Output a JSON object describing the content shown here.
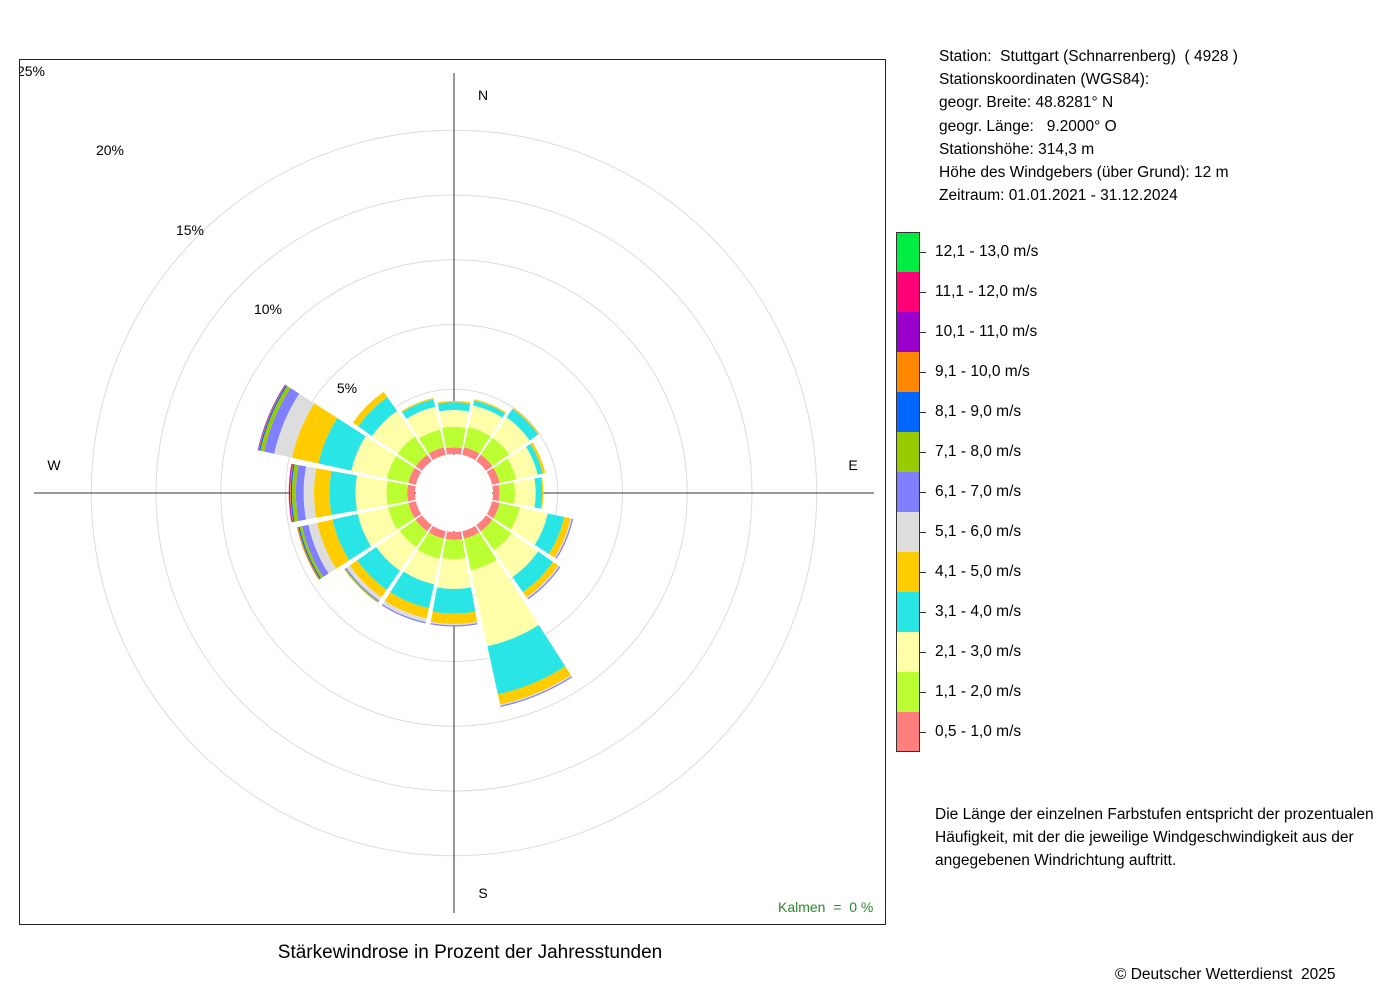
{
  "chart_data": {
    "type": "windrose",
    "title": "Stärkewindrose in Prozent der Jahresstunden",
    "directions": [
      "N",
      "NNO",
      "NO",
      "ONO",
      "O",
      "OSO",
      "SO",
      "SSO",
      "S",
      "SSW",
      "SW",
      "WSW",
      "W",
      "WNW",
      "NW",
      "NNW"
    ],
    "cardinal_labels": {
      "N": "N",
      "E": "E",
      "S": "S",
      "W": "W"
    },
    "radial_ticks": [
      {
        "value": 5,
        "label": "5%"
      },
      {
        "value": 10,
        "label": "10%"
      },
      {
        "value": 15,
        "label": "15%"
      },
      {
        "value": 20,
        "label": "20%"
      },
      {
        "value": 25,
        "label": "25%"
      }
    ],
    "speed_classes": [
      {
        "label": "0,5 - 1,0 m/s",
        "color": "#ff7f7f"
      },
      {
        "label": "1,1 - 2,0 m/s",
        "color": "#bbff33"
      },
      {
        "label": "2,1 - 3,0 m/s",
        "color": "#ffffaa"
      },
      {
        "label": "3,1 - 4,0 m/s",
        "color": "#2ae5e5"
      },
      {
        "label": "4,1 - 5,0 m/s",
        "color": "#ffcc00"
      },
      {
        "label": "5,1 - 6,0 m/s",
        "color": "#dddddd"
      },
      {
        "label": "6,1 - 7,0 m/s",
        "color": "#8080ff"
      },
      {
        "label": "7,1 - 8,0 m/s",
        "color": "#99cc00"
      },
      {
        "label": "8,1 - 9,0 m/s",
        "color": "#0066ff"
      },
      {
        "label": "9,1 - 10,0 m/s",
        "color": "#ff8800"
      },
      {
        "label": "10,1 - 11,0 m/s",
        "color": "#9900cc"
      },
      {
        "label": "11,1 - 12,0 m/s",
        "color": "#ff0077"
      },
      {
        "label": "12,1 - 13,0 m/s",
        "color": "#00ee44"
      }
    ],
    "frequencies": [
      [
        0.5,
        1.6,
        1.3,
        0.6,
        0.1,
        0,
        0,
        0,
        0,
        0,
        0,
        0,
        0
      ],
      [
        0.6,
        1.6,
        1.7,
        0.4,
        0.1,
        0,
        0,
        0,
        0,
        0,
        0,
        0,
        0
      ],
      [
        0.6,
        1.6,
        1.9,
        0.8,
        0.1,
        0,
        0,
        0,
        0,
        0,
        0,
        0,
        0
      ],
      [
        0.6,
        1.3,
        1.7,
        0.4,
        0.2,
        0,
        0,
        0,
        0,
        0,
        0,
        0,
        0
      ],
      [
        0.5,
        1.2,
        1.6,
        0.5,
        0.1,
        0,
        0,
        0,
        0,
        0,
        0,
        0,
        0
      ],
      [
        0.6,
        1.6,
        2.2,
        1.3,
        0.5,
        0.1,
        0.1,
        0,
        0,
        0,
        0,
        0,
        0
      ],
      [
        0.6,
        1.8,
        2.5,
        1.4,
        0.5,
        0.1,
        0.1,
        0,
        0,
        0,
        0,
        0,
        0
      ],
      [
        0.6,
        2.5,
        6.0,
        3.8,
        0.8,
        0.1,
        0.1,
        0,
        0,
        0,
        0,
        0,
        0
      ],
      [
        0.6,
        1.5,
        2.3,
        1.9,
        0.8,
        0.1,
        0.1,
        0,
        0,
        0,
        0,
        0,
        0
      ],
      [
        0.6,
        1.6,
        2.0,
        1.9,
        0.8,
        0.3,
        0.1,
        0,
        0,
        0,
        0,
        0,
        0
      ],
      [
        0.6,
        1.5,
        2.2,
        1.8,
        0.7,
        0.3,
        0.1,
        0.1,
        0,
        0,
        0,
        0,
        0
      ],
      [
        0.6,
        1.6,
        2.4,
        2.0,
        1.2,
        0.7,
        0.5,
        0.2,
        0.1,
        0.1,
        0,
        0,
        0
      ],
      [
        0.6,
        1.6,
        2.4,
        2.0,
        1.2,
        0.8,
        0.6,
        0.3,
        0.1,
        0.05,
        0.05,
        0.05,
        0
      ],
      [
        0.6,
        1.7,
        2.8,
        2.6,
        2.1,
        1.4,
        0.8,
        0.3,
        0.1,
        0.05,
        0.05,
        0,
        0
      ],
      [
        0.6,
        1.7,
        2.4,
        1.3,
        0.5,
        0,
        0,
        0,
        0,
        0,
        0,
        0,
        0
      ],
      [
        0.6,
        1.4,
        1.8,
        0.6,
        0.1,
        0,
        0,
        0,
        0,
        0,
        0,
        0,
        0
      ]
    ],
    "calm": "Kalmen  =  0 %"
  },
  "station": {
    "line1": "Station:  Stuttgart (Schnarrenberg)  ( 4928 )",
    "line2": "Stationskoordinaten (WGS84):",
    "line3": "geogr. Breite: 48.8281° N",
    "line4": "geogr. Länge:   9.2000° O",
    "line5": "Stationshöhe: 314,3 m",
    "line6": "Höhe des Windgebers (über Grund): 12 m",
    "line7": "Zeitraum: 01.01.2021 - 31.12.2024"
  },
  "note": {
    "line1": "Die Länge der einzelnen Farbstufen entspricht der prozentualen",
    "line2": "Häufigkeit, mit der die jeweilige Windgeschwindigkeit aus der",
    "line3": "angegebenen Windrichtung auftritt."
  },
  "copyright": "© Deutscher Wetterdienst  2025"
}
